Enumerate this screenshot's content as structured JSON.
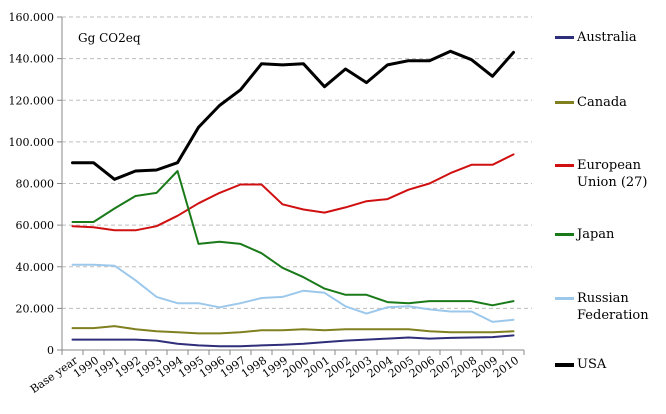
{
  "chart_data": {
    "type": "line",
    "title": "",
    "unit_label": "Gg CO2eq",
    "xlabel": "",
    "ylabel": "",
    "ylim": [
      0,
      160000
    ],
    "y_ticks": [
      0,
      20000,
      40000,
      60000,
      80000,
      100000,
      120000,
      140000,
      160000
    ],
    "y_tick_labels": [
      "0",
      "20.000",
      "40.000",
      "60.000",
      "80.000",
      "100.000",
      "120.000",
      "140.000",
      "160.000"
    ],
    "grid": "horizontal-dashed",
    "legend_position": "right",
    "categories": [
      "Base year",
      "1990",
      "1991",
      "1992",
      "1993",
      "1994",
      "1995",
      "1996",
      "1997",
      "1998",
      "1999",
      "2000",
      "2001",
      "2002",
      "2003",
      "2004",
      "2005",
      "2006",
      "2007",
      "2008",
      "2009",
      "2010"
    ],
    "series": [
      {
        "name": "Australia",
        "color": "#2e2e7a",
        "width": 2,
        "values": [
          5000,
          5000,
          5000,
          5000,
          4500,
          3000,
          2200,
          1800,
          1800,
          2200,
          2500,
          3000,
          3800,
          4500,
          5000,
          5500,
          6000,
          5500,
          5800,
          6000,
          6200,
          7000
        ]
      },
      {
        "name": "Canada",
        "color": "#808020",
        "width": 2,
        "values": [
          10500,
          10500,
          11500,
          10000,
          9000,
          8500,
          8000,
          8000,
          8500,
          9500,
          9500,
          10000,
          9500,
          10000,
          10000,
          10000,
          10000,
          9000,
          8500,
          8500,
          8500,
          9000
        ]
      },
      {
        "name": "European Union (27)",
        "color": "#d01010",
        "width": 2,
        "values": [
          59500,
          59000,
          57500,
          57500,
          59500,
          64500,
          70500,
          75500,
          79500,
          79500,
          70000,
          67500,
          66000,
          68500,
          71500,
          72500,
          77000,
          80000,
          85000,
          89000,
          89000,
          94000
        ]
      },
      {
        "name": "Japan",
        "color": "#1a7a1a",
        "width": 2,
        "values": [
          61500,
          61500,
          68000,
          74000,
          75500,
          86000,
          51000,
          52000,
          51000,
          46500,
          39500,
          35000,
          29500,
          26500,
          26500,
          23000,
          22500,
          23500,
          23500,
          23500,
          21500,
          23500
        ]
      },
      {
        "name": "Russian Federation",
        "color": "#9cc8ec",
        "width": 2,
        "values": [
          41000,
          41000,
          40500,
          33500,
          25500,
          22500,
          22500,
          20500,
          22500,
          25000,
          25500,
          28500,
          27500,
          21000,
          17500,
          20500,
          21000,
          19500,
          18500,
          18500,
          13500,
          14500
        ]
      },
      {
        "name": "USA",
        "color": "#000000",
        "width": 3,
        "values": [
          90000,
          90000,
          82000,
          86000,
          86500,
          90000,
          107000,
          117500,
          125000,
          137500,
          137000,
          137500,
          126500,
          135000,
          128500,
          137000,
          139000,
          139000,
          143500,
          139500,
          131500,
          143000
        ]
      }
    ]
  }
}
